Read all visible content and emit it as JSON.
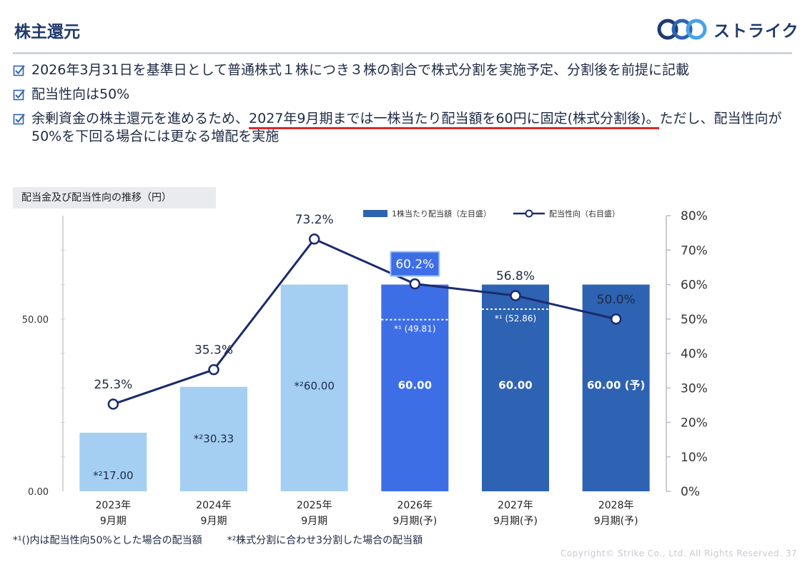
{
  "header": {
    "title": "株主還元",
    "logo_text": "ストライク"
  },
  "bullets": [
    {
      "pre": "2026年3月31日を基準日として普通株式１株につき３株の割合で株式分割を実施予定、分割後を前提に記載",
      "underlined": "",
      "post": ""
    },
    {
      "pre": "配当性向は50%",
      "underlined": "",
      "post": ""
    },
    {
      "pre": "余剰資金の株主還元を進めるため、",
      "underlined": "2027年9月期までは一株当たり配当額を60円に固定(株式分割後)。",
      "post": "ただし、配当性向が50%を下回る場合には更なる増配を実施"
    }
  ],
  "chart_label": "配当金及び配当性向の推移（円）",
  "footnotes": {
    "note1": "*¹()内は配当性向50%とした場合の配当額",
    "note2": "*²株式分割に合わせ3分割した場合の配当額"
  },
  "copyright": "Copyright© Strike Co., Ltd. All Rights Reserved.   37",
  "colors": {
    "bar_light": "#a4cff3",
    "bar_mid": "#3d6ee6",
    "bar_dark": "#2e62b3",
    "line": "#1b2a6e",
    "accent_red": "#e0262b",
    "title": "#1f3a6e"
  },
  "chart_data": {
    "type": "bar+line",
    "categories": [
      [
        "2023年",
        "9月期"
      ],
      [
        "2024年",
        "9月期"
      ],
      [
        "2025年",
        "9月期"
      ],
      [
        "2026年",
        "9月期(予)"
      ],
      [
        "2027年",
        "9月期(予)"
      ],
      [
        "2028年",
        "9月期(予)"
      ]
    ],
    "bar_series": {
      "name": "1株当たり配当額（左目盛）",
      "values": [
        17.0,
        30.33,
        60.0,
        60.0,
        60.0,
        60.0
      ],
      "labels": [
        "*²17.00",
        "*²30.33",
        "*²60.00",
        "60.00",
        "60.00",
        "60.00 (予)"
      ],
      "color_keys": [
        "bar_light",
        "bar_light",
        "bar_light",
        "bar_mid",
        "bar_dark",
        "bar_dark"
      ]
    },
    "reference_values": [
      {
        "index": 3,
        "value": 49.81,
        "label": "*¹ (49.81)"
      },
      {
        "index": 4,
        "value": 52.86,
        "label": "*¹ (52.86)"
      }
    ],
    "line_series": {
      "name": "配当性向（右目盛）",
      "values": [
        25.3,
        35.3,
        73.2,
        60.2,
        56.8,
        50.0
      ],
      "labels": [
        "25.3%",
        "35.3%",
        "73.2%",
        "60.2%",
        "56.8%",
        "50.0%"
      ],
      "highlight_index": 3
    },
    "y_left": {
      "min": 0,
      "max": 80,
      "ticks": [
        0,
        50
      ],
      "tick_labels": [
        "0.00",
        "50.00"
      ]
    },
    "y_right": {
      "min": 0,
      "max": 80,
      "ticks": [
        0,
        10,
        20,
        30,
        40,
        50,
        60,
        70,
        80
      ],
      "tick_labels": [
        "0%",
        "10%",
        "20%",
        "30%",
        "40%",
        "50%",
        "60%",
        "70%",
        "80%"
      ]
    },
    "legend_position": "top-right"
  }
}
